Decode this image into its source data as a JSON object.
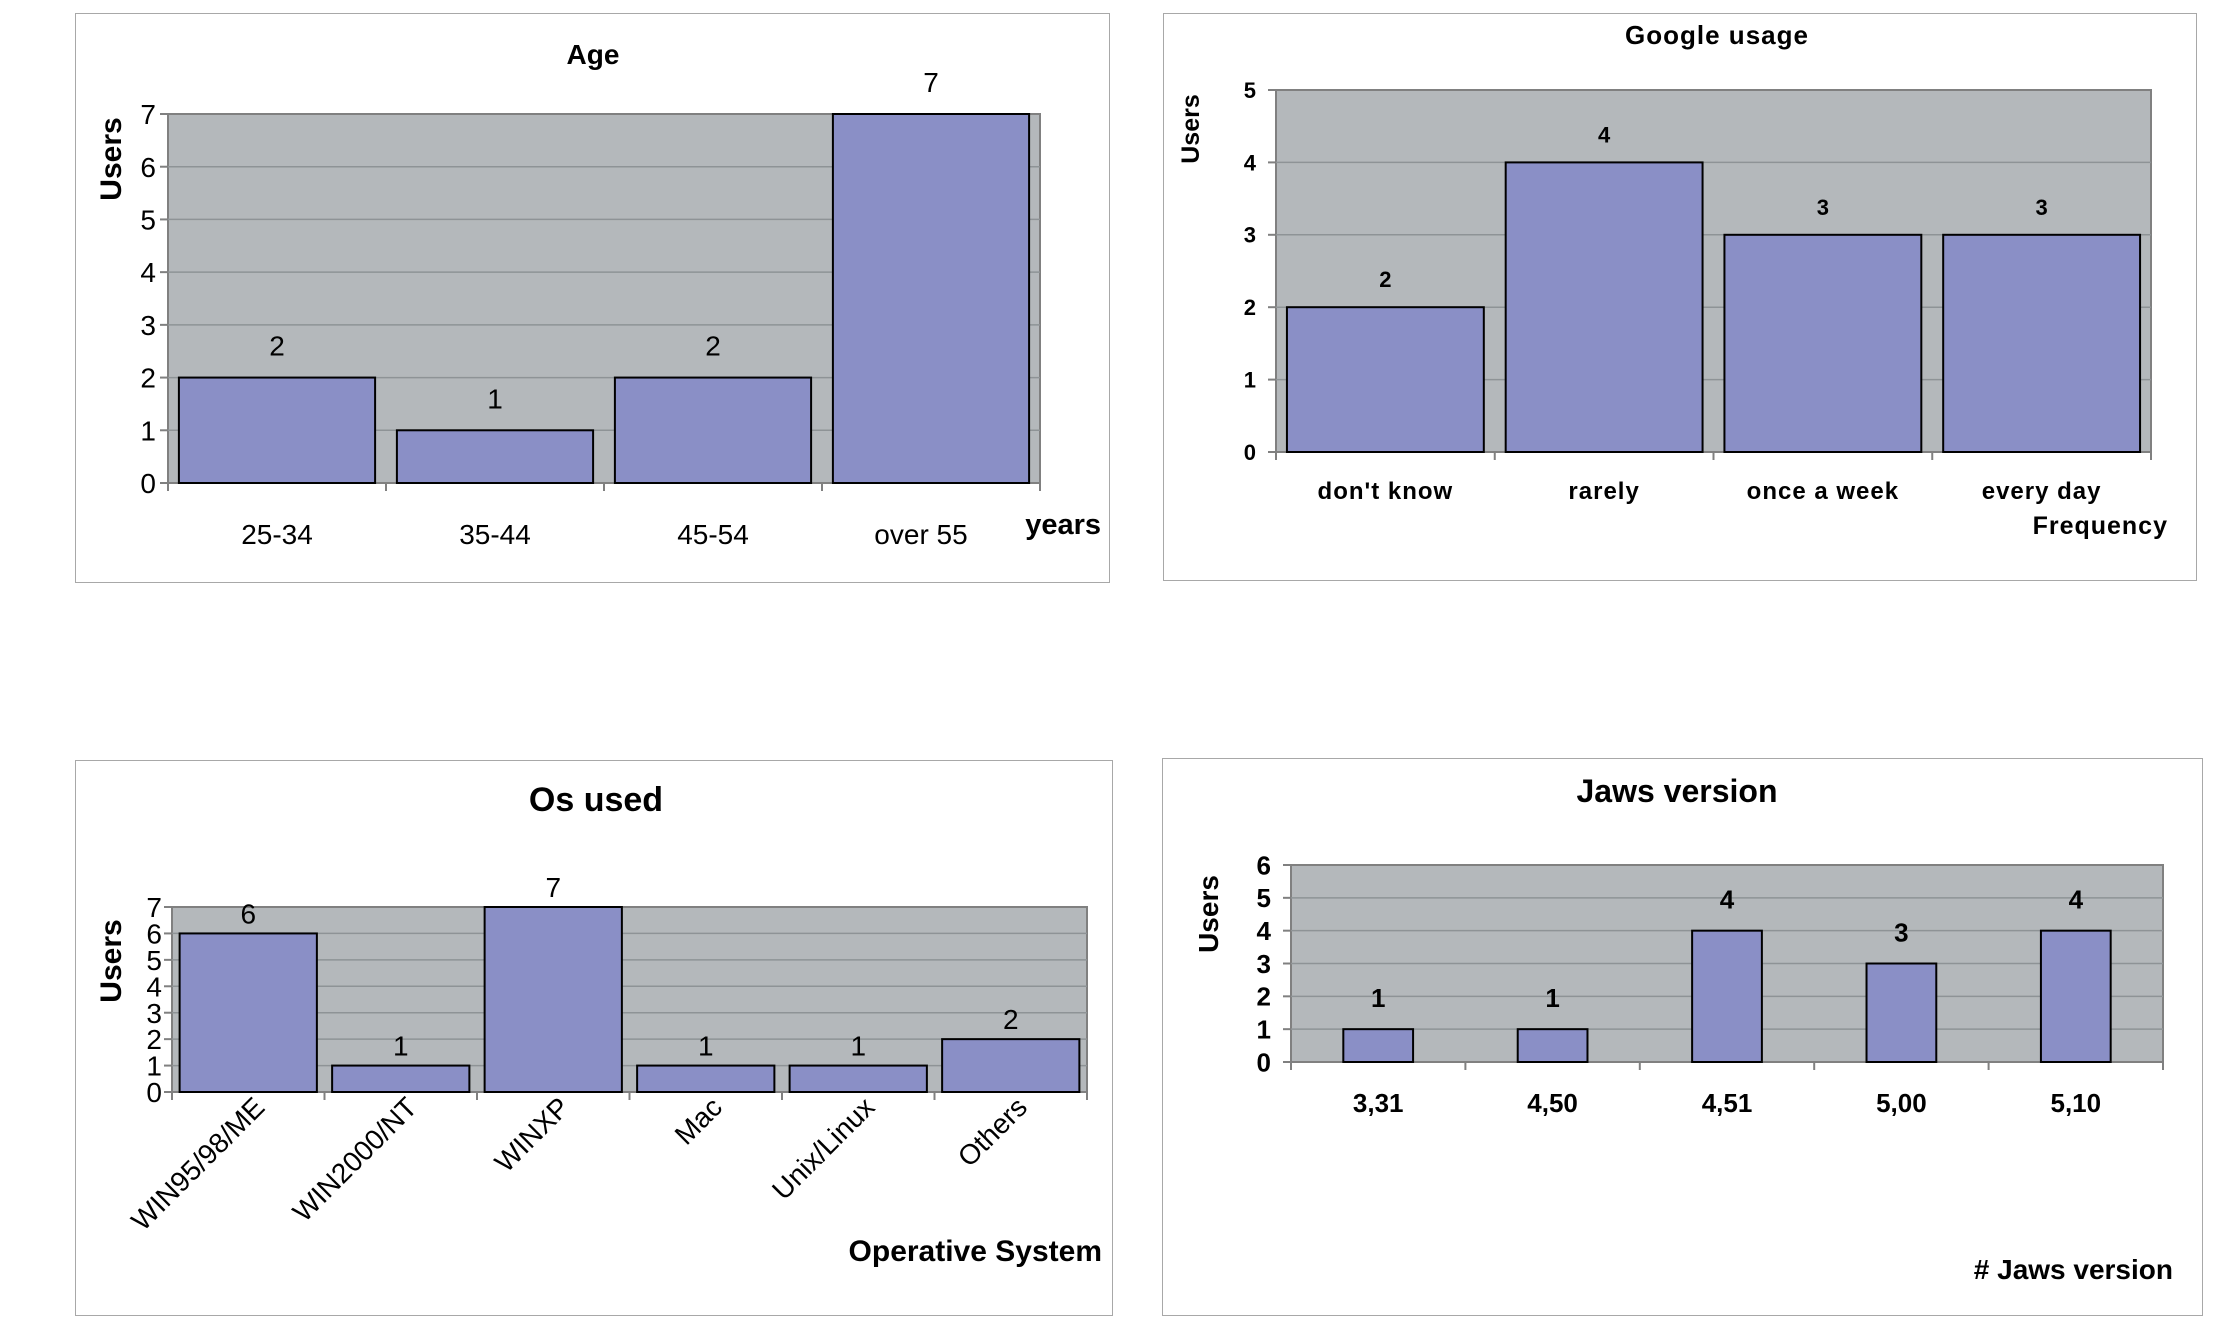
{
  "colors": {
    "plot_bg": "#b4b8bb",
    "bar": "#8a8fc6",
    "grid": "#8e9396",
    "axis": "#808080"
  },
  "chart_data": [
    {
      "type": "bar",
      "title": "Age",
      "xlabel": "years",
      "ylabel": "Users",
      "categories": [
        "25-34",
        "35-44",
        "45-54",
        "over 55"
      ],
      "values": [
        2,
        1,
        2,
        7
      ],
      "ylim": [
        0,
        7
      ],
      "yticks": [
        "0",
        "1",
        "2",
        "3",
        "4",
        "5",
        "6",
        "7"
      ],
      "grid": true,
      "legend": "none"
    },
    {
      "type": "bar",
      "title": "Google usage",
      "xlabel": "Frequency",
      "ylabel": "Users",
      "categories": [
        "don't know",
        "rarely",
        "once a week",
        "every day"
      ],
      "values": [
        2,
        4,
        3,
        3
      ],
      "ylim": [
        0,
        5
      ],
      "yticks": [
        "0",
        "1",
        "2",
        "3",
        "4",
        "5"
      ],
      "grid": true,
      "legend": "none"
    },
    {
      "type": "bar",
      "title": "Os used",
      "xlabel": "Operative System",
      "ylabel": "Users",
      "categories": [
        "WIN95/98/ME",
        "WIN2000/NT",
        "WINXP",
        "Mac",
        "Unix/Linux",
        "Others"
      ],
      "values": [
        6,
        1,
        7,
        1,
        1,
        2
      ],
      "ylim": [
        0,
        7
      ],
      "yticks": [
        "0",
        "1",
        "2",
        "3",
        "4",
        "5",
        "6",
        "7"
      ],
      "grid": true,
      "legend": "none"
    },
    {
      "type": "bar",
      "title": "Jaws version",
      "xlabel": "# Jaws version",
      "ylabel": "Users",
      "categories": [
        "3,31",
        "4,50",
        "4,51",
        "5,00",
        "5,10"
      ],
      "values": [
        1,
        1,
        4,
        3,
        4
      ],
      "ylim": [
        0,
        6
      ],
      "yticks": [
        "0",
        "1",
        "2",
        "3",
        "4",
        "5",
        "6"
      ],
      "grid": true,
      "legend": "none"
    }
  ]
}
